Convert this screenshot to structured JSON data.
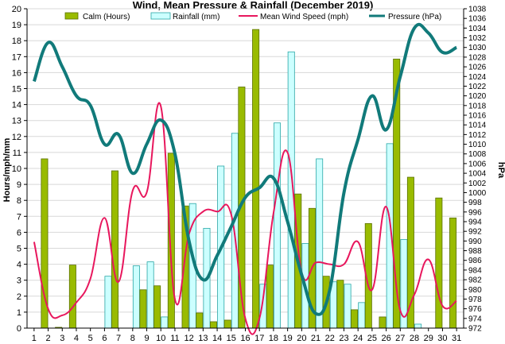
{
  "chart_data": {
    "type": "bar",
    "title": "Wind, Mean Pressure & Rainfall (December 2019)",
    "ylabel": "Hours/mph/mm",
    "y2label": "hPa",
    "ylim": [
      0,
      20
    ],
    "y2lim": [
      972,
      1038
    ],
    "grid": true,
    "legend_position": "top",
    "categories": [
      "1",
      "2",
      "3",
      "4",
      "5",
      "6",
      "7",
      "8",
      "9",
      "10",
      "11",
      "12",
      "13",
      "14",
      "15",
      "16",
      "17",
      "18",
      "19",
      "20",
      "21",
      "22",
      "23",
      "24",
      "25",
      "26",
      "27",
      "28",
      "29",
      "30",
      "31"
    ],
    "series": [
      {
        "name": "Calm (Hours)",
        "type": "bar",
        "axis": "left",
        "color": "#99bb00",
        "values": [
          0,
          10.6,
          0.05,
          3.95,
          0,
          0,
          9.85,
          0,
          2.4,
          2.65,
          10.95,
          7.65,
          0.95,
          0.4,
          0.5,
          15.1,
          18.7,
          3.95,
          0,
          8.4,
          7.5,
          3.25,
          3.0,
          1.15,
          6.55,
          0.7,
          16.85,
          9.45,
          0,
          8.15,
          6.9
        ]
      },
      {
        "name": "Rainfall (mm)",
        "type": "bar",
        "axis": "left",
        "color": "#ccffff",
        "values": [
          0,
          0,
          0,
          0,
          0,
          3.25,
          0,
          3.9,
          4.15,
          0.7,
          0,
          7.8,
          6.25,
          10.15,
          12.2,
          0,
          2.75,
          12.85,
          17.3,
          5.3,
          10.6,
          2.9,
          2.75,
          1.6,
          0,
          11.55,
          5.55,
          0.25,
          0,
          0,
          0
        ]
      },
      {
        "name": "Mean Wind Speed (mph)",
        "type": "line",
        "axis": "left",
        "color": "#e8175d",
        "values": [
          5.4,
          1.2,
          0.8,
          1.6,
          3.1,
          6.9,
          2.9,
          8.6,
          8.5,
          13.9,
          1.8,
          5.9,
          7.3,
          7.3,
          7.1,
          0.6,
          0.6,
          7.2,
          11.0,
          3.5,
          4.1,
          4.0,
          4.0,
          5.4,
          2.4,
          7.6,
          1.1,
          2.1,
          4.3,
          1.4,
          1.7
        ]
      },
      {
        "name": "Pressure (hPa)",
        "type": "line",
        "axis": "right",
        "color": "#117a7a",
        "values": [
          1023,
          1031,
          1026,
          1020,
          1018,
          1010,
          1012,
          1004,
          1010,
          1015,
          1008,
          990,
          982,
          987,
          993,
          999,
          1001,
          1003,
          994,
          983,
          975,
          980,
          1000,
          1011,
          1020,
          1013,
          1024,
          1034,
          1033,
          1029,
          1030
        ]
      }
    ],
    "y_ticks": [
      0,
      1,
      2,
      3,
      4,
      5,
      6,
      7,
      8,
      9,
      10,
      11,
      12,
      13,
      14,
      15,
      16,
      17,
      18,
      19,
      20
    ],
    "y2_ticks": [
      972,
      974,
      976,
      978,
      980,
      982,
      984,
      986,
      988,
      990,
      992,
      994,
      996,
      998,
      1000,
      1002,
      1004,
      1006,
      1008,
      1010,
      1012,
      1014,
      1016,
      1018,
      1020,
      1022,
      1024,
      1026,
      1028,
      1030,
      1032,
      1034,
      1036,
      1038
    ]
  }
}
